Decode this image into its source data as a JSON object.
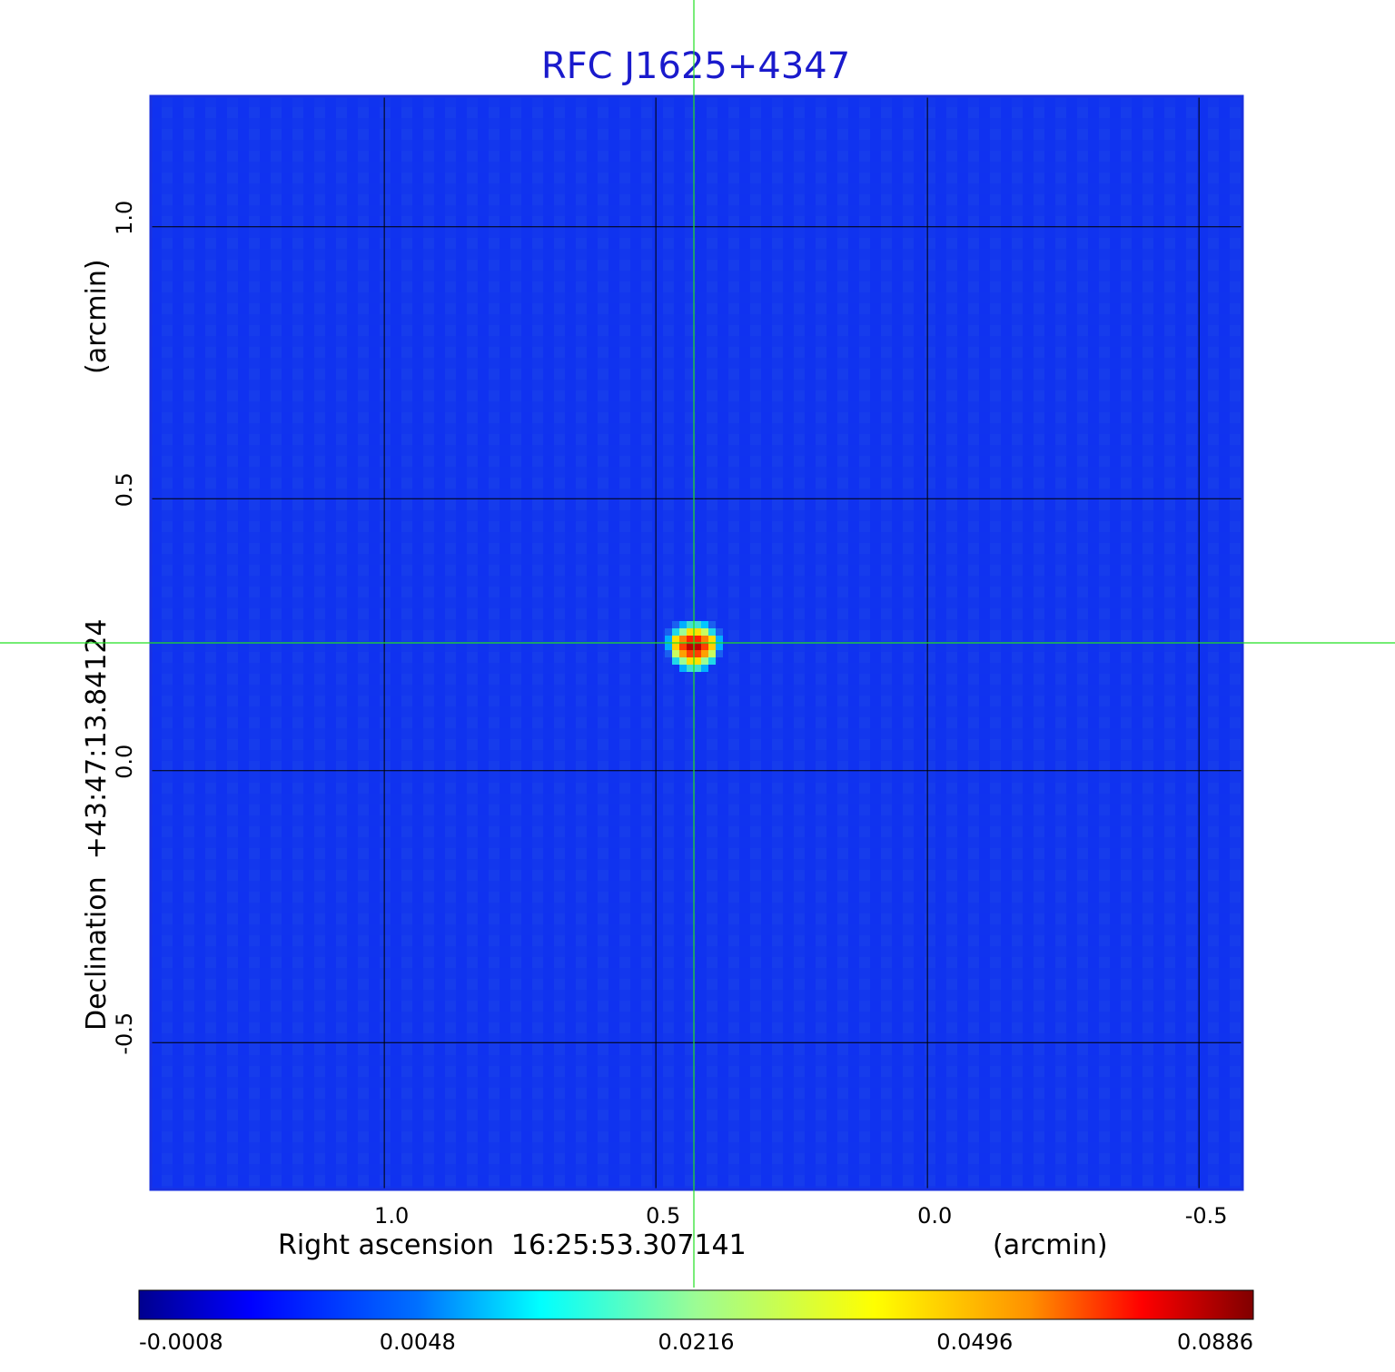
{
  "chart_data": {
    "type": "heatmap",
    "title": "RFC J1625+4347",
    "xlabel_left": "Right ascension  16:25:53.307141",
    "xlabel_right": "(arcmin)",
    "ylabel_left": "Declination  +43:47:13.84124",
    "ylabel_right": "(arcmin)",
    "x_ticks": [
      {
        "value": 1.0,
        "label": "1.0"
      },
      {
        "value": 0.5,
        "label": "0.5"
      },
      {
        "value": 0.0,
        "label": "0.0"
      },
      {
        "value": -0.5,
        "label": "-0.5"
      }
    ],
    "y_ticks": [
      {
        "value": 1.0,
        "label": "1.0"
      },
      {
        "value": 0.5,
        "label": "0.5"
      },
      {
        "value": 0.0,
        "label": "0.0"
      },
      {
        "value": -0.5,
        "label": "-0.5"
      }
    ],
    "x_range": [
      1.43,
      -0.58
    ],
    "y_range": [
      -0.77,
      1.24
    ],
    "grid": true,
    "crosshair": {
      "x": 0.43,
      "y": 0.235
    },
    "source": {
      "x": 0.43,
      "y": 0.235,
      "peak": 0.0886
    },
    "colorbar": {
      "ticks": [
        "-0.0008",
        "0.0048",
        "0.0216",
        "0.0496",
        "0.0886"
      ],
      "colormap": [
        "#00008f",
        "#0000ff",
        "#00ffff",
        "#ffff00",
        "#ff0000",
        "#800000"
      ]
    },
    "background_color": "#1030f0"
  }
}
